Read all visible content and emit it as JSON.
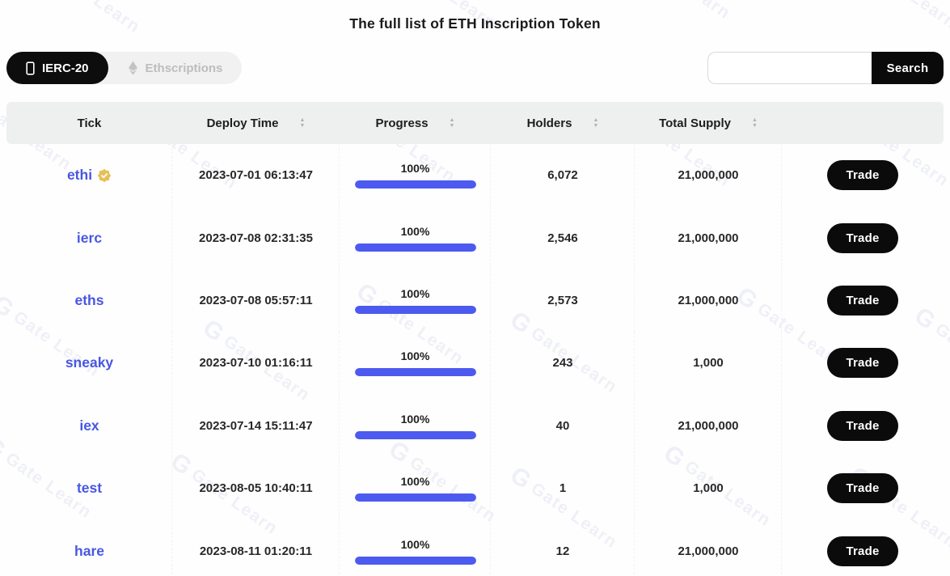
{
  "page": {
    "title": "The full list of ETH Inscription Token"
  },
  "tabs": [
    {
      "label": "IERC-20",
      "active": true,
      "icon": "inscription-icon"
    },
    {
      "label": "Ethscriptions",
      "active": false,
      "icon": "ethereum-icon"
    }
  ],
  "search": {
    "placeholder": "",
    "value": "",
    "button_label": "Search"
  },
  "icons": {
    "sort_asc": "▲",
    "sort_desc": "▼"
  },
  "table": {
    "columns": [
      {
        "label": "Tick",
        "sortable": false
      },
      {
        "label": "Deploy Time",
        "sortable": true
      },
      {
        "label": "Progress",
        "sortable": true
      },
      {
        "label": "Holders",
        "sortable": true
      },
      {
        "label": "Total Supply",
        "sortable": true
      },
      {
        "label": "",
        "sortable": false
      }
    ],
    "rows": [
      {
        "tick": "ethi",
        "verified": true,
        "deploy_time": "2023-07-01 06:13:47",
        "progress": "100%",
        "progress_value": 100,
        "holders": "6,072",
        "total_supply": "21,000,000",
        "action": "Trade"
      },
      {
        "tick": "ierc",
        "verified": false,
        "deploy_time": "2023-07-08 02:31:35",
        "progress": "100%",
        "progress_value": 100,
        "holders": "2,546",
        "total_supply": "21,000,000",
        "action": "Trade"
      },
      {
        "tick": "eths",
        "verified": false,
        "deploy_time": "2023-07-08 05:57:11",
        "progress": "100%",
        "progress_value": 100,
        "holders": "2,573",
        "total_supply": "21,000,000",
        "action": "Trade"
      },
      {
        "tick": "sneaky",
        "verified": false,
        "deploy_time": "2023-07-10 01:16:11",
        "progress": "100%",
        "progress_value": 100,
        "holders": "243",
        "total_supply": "1,000",
        "action": "Trade"
      },
      {
        "tick": "iex",
        "verified": false,
        "deploy_time": "2023-07-14 15:11:47",
        "progress": "100%",
        "progress_value": 100,
        "holders": "40",
        "total_supply": "21,000,000",
        "action": "Trade"
      },
      {
        "tick": "test",
        "verified": false,
        "deploy_time": "2023-08-05 10:40:11",
        "progress": "100%",
        "progress_value": 100,
        "holders": "1",
        "total_supply": "1,000",
        "action": "Trade"
      },
      {
        "tick": "hare",
        "verified": false,
        "deploy_time": "2023-08-11 01:20:11",
        "progress": "100%",
        "progress_value": 100,
        "holders": "12",
        "total_supply": "21,000,000",
        "action": "Trade"
      }
    ]
  },
  "watermark": {
    "logo": "G",
    "text": "Gate Learn"
  },
  "colors": {
    "accent_blue": "#4857e2",
    "progress_bar": "#4c5af0",
    "badge_gold": "#e7bf56",
    "button_black": "#0b0b0b",
    "header_bg": "#eef0f0",
    "inactive_tab_text": "#bdbdbd"
  }
}
